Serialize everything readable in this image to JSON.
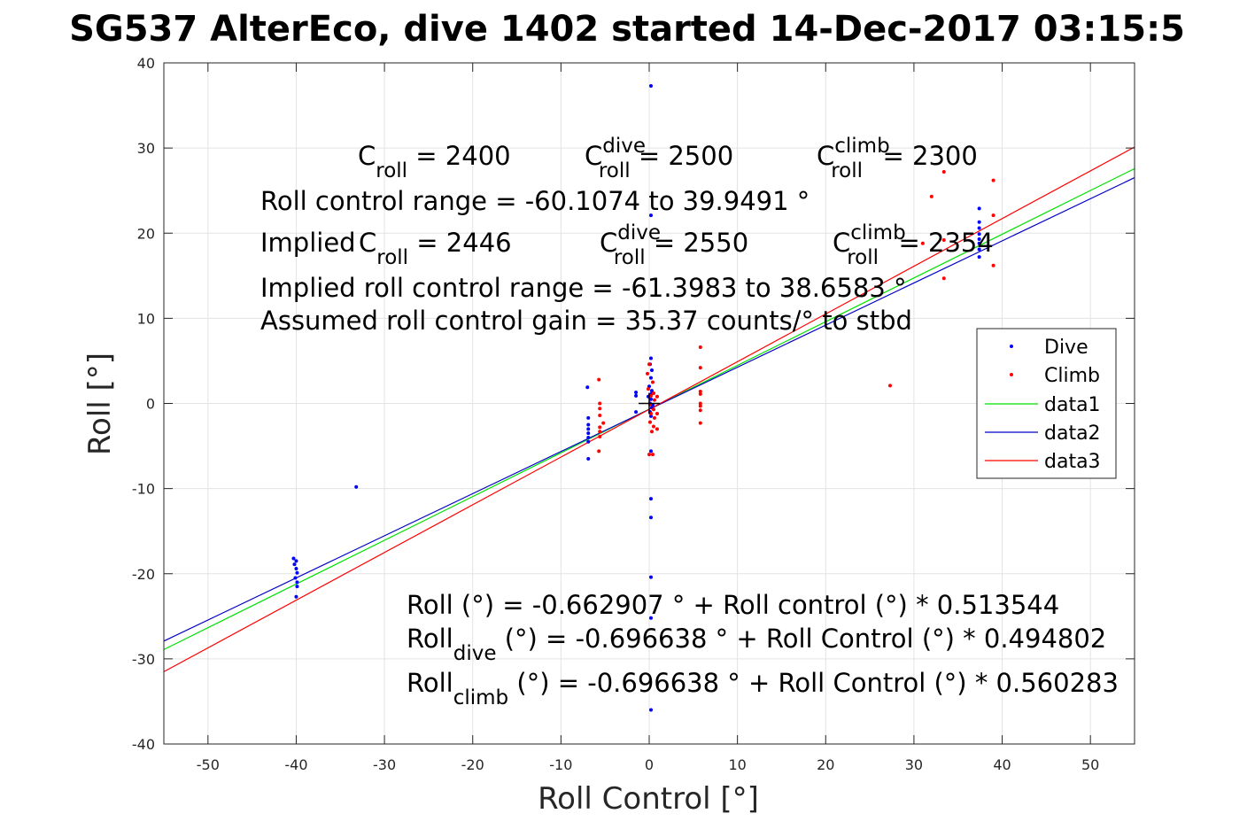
{
  "chart_data": {
    "type": "scatter",
    "title": "SG537 AlterEco, dive 1402 started 14-Dec-2017 03:15:5",
    "xlabel": "Roll Control [°]",
    "ylabel": "Roll [°]",
    "xlim": [
      -55,
      55
    ],
    "ylim": [
      -40,
      40
    ],
    "xticks": [
      -50,
      -40,
      -30,
      -20,
      -10,
      0,
      10,
      20,
      30,
      40,
      50
    ],
    "yticks": [
      -40,
      -30,
      -20,
      -10,
      0,
      10,
      20,
      30,
      40
    ],
    "grid": true,
    "legend_position": "east",
    "series": [
      {
        "name": "Dive",
        "kind": "points",
        "color": "#0000ff",
        "points": [
          [
            -40.3,
            -18.2
          ],
          [
            -40.0,
            -18.5
          ],
          [
            -40.2,
            -18.9
          ],
          [
            -40.0,
            -19.4
          ],
          [
            -39.9,
            -19.9
          ],
          [
            -40.1,
            -20.5
          ],
          [
            -39.9,
            -21.0
          ],
          [
            -39.9,
            -21.5
          ],
          [
            -40.0,
            -22.7
          ],
          [
            -33.2,
            -9.8
          ],
          [
            -7.0,
            1.9
          ],
          [
            -6.9,
            -1.7
          ],
          [
            -6.9,
            -2.5
          ],
          [
            -6.9,
            -3.0
          ],
          [
            -6.9,
            -3.5
          ],
          [
            -6.9,
            -4.0
          ],
          [
            -6.9,
            -4.5
          ],
          [
            -6.9,
            -6.5
          ],
          [
            -1.5,
            1.3
          ],
          [
            -1.5,
            0.9
          ],
          [
            -1.5,
            -1.0
          ],
          [
            0.2,
            37.3
          ],
          [
            0.2,
            22.1
          ],
          [
            0.2,
            5.3
          ],
          [
            0.1,
            4.6
          ],
          [
            0.3,
            3.9
          ],
          [
            0.2,
            3.0
          ],
          [
            0.0,
            2.0
          ],
          [
            0.3,
            1.5
          ],
          [
            0.1,
            1.0
          ],
          [
            0.2,
            0.5
          ],
          [
            0.1,
            0.0
          ],
          [
            0.3,
            -0.5
          ],
          [
            0.1,
            -1.0
          ],
          [
            0.2,
            -1.5
          ],
          [
            -0.1,
            0.8
          ],
          [
            0.4,
            -0.2
          ],
          [
            0.3,
            1.2
          ],
          [
            0.2,
            -5.6
          ],
          [
            0.2,
            -11.2
          ],
          [
            0.2,
            -13.4
          ],
          [
            0.2,
            -20.4
          ],
          [
            0.2,
            -25.2
          ],
          [
            0.2,
            -36.0
          ],
          [
            37.4,
            22.9
          ],
          [
            37.4,
            21.3
          ],
          [
            37.4,
            20.6
          ],
          [
            37.4,
            19.9
          ],
          [
            37.4,
            19.3
          ],
          [
            37.4,
            18.8
          ],
          [
            37.4,
            18.1
          ],
          [
            37.4,
            17.2
          ]
        ]
      },
      {
        "name": "Climb",
        "kind": "points",
        "color": "#ff0000",
        "points": [
          [
            -5.7,
            2.8
          ],
          [
            -5.6,
            0.0
          ],
          [
            -5.6,
            -0.6
          ],
          [
            -5.6,
            -1.4
          ],
          [
            -5.6,
            -2.8
          ],
          [
            -5.6,
            -3.3
          ],
          [
            -5.6,
            -3.9
          ],
          [
            -5.7,
            -5.6
          ],
          [
            -5.2,
            -2.3
          ],
          [
            0.0,
            4.6
          ],
          [
            -0.2,
            3.5
          ],
          [
            0.4,
            2.5
          ],
          [
            -0.1,
            1.7
          ],
          [
            0.5,
            1.2
          ],
          [
            0.2,
            0.9
          ],
          [
            0.6,
            0.4
          ],
          [
            0.1,
            -0.1
          ],
          [
            0.5,
            -0.7
          ],
          [
            0.2,
            -1.2
          ],
          [
            0.6,
            -1.7
          ],
          [
            0.1,
            -2.2
          ],
          [
            0.5,
            -2.7
          ],
          [
            0.3,
            -3.3
          ],
          [
            0.9,
            -3.0
          ],
          [
            0.9,
            -1.2
          ],
          [
            0.9,
            0.8
          ],
          [
            0.0,
            -6.0
          ],
          [
            0.4,
            -6.0
          ],
          [
            5.8,
            6.6
          ],
          [
            5.8,
            4.2
          ],
          [
            5.8,
            1.4
          ],
          [
            5.8,
            1.1
          ],
          [
            5.8,
            0.0
          ],
          [
            5.8,
            -0.3
          ],
          [
            5.8,
            -0.8
          ],
          [
            5.8,
            -2.3
          ],
          [
            27.3,
            2.1
          ],
          [
            31.0,
            18.8
          ],
          [
            32.0,
            24.3
          ],
          [
            33.4,
            27.2
          ],
          [
            33.4,
            19.2
          ],
          [
            33.4,
            14.7
          ],
          [
            39.0,
            26.2
          ],
          [
            39.0,
            22.1
          ],
          [
            39.0,
            16.2
          ]
        ]
      },
      {
        "name": "data1",
        "kind": "line",
        "color": "#00e000",
        "x": [
          -55,
          55
        ],
        "y": [
          -28.909,
          27.575
        ]
      },
      {
        "name": "data2",
        "kind": "line",
        "color": "#0000c8",
        "x": [
          -55,
          55
        ],
        "y": [
          -27.911,
          26.518
        ]
      },
      {
        "name": "data3",
        "kind": "line",
        "color": "#ff0000",
        "x": [
          -55,
          55
        ],
        "y": [
          -31.512,
          30.119
        ]
      }
    ],
    "marker": {
      "kind": "plus",
      "x": 0,
      "y": 0,
      "color": "#000000"
    },
    "annotations": {
      "row1": [
        {
          "base": "C",
          "sub": "roll",
          "sup": "",
          "rest": " = 2400"
        },
        {
          "base": "C",
          "sub": "roll",
          "sup": "dive",
          "rest": " = 2500"
        },
        {
          "base": "C",
          "sub": "roll",
          "sup": "climb",
          "rest": " = 2300"
        }
      ],
      "range": "Roll control range = -60.1074 to 39.9491 °",
      "implied_prefix": "Implied ",
      "row2": [
        {
          "base": "C",
          "sub": "roll",
          "sup": "",
          "rest": " = 2446"
        },
        {
          "base": "C",
          "sub": "roll",
          "sup": "dive",
          "rest": " = 2550"
        },
        {
          "base": "C",
          "sub": "roll",
          "sup": "climb",
          "rest": " = 2354"
        }
      ],
      "implied_range": "Implied roll control range = -61.3983 to 38.6583 °",
      "gain": "Assumed roll control gain = 35.37 counts/° to stbd",
      "fit_all": "Roll (°) = -0.662907 ° + Roll control (°) * 0.513544",
      "fit_dive": {
        "base": "Roll",
        "sub": "dive",
        "rest": " (°) = -0.696638 ° + Roll Control (°) * 0.494802"
      },
      "fit_climb": {
        "base": "Roll",
        "sub": "climb",
        "rest": " (°) = -0.696638 ° + Roll Control (°) * 0.560283"
      }
    }
  }
}
